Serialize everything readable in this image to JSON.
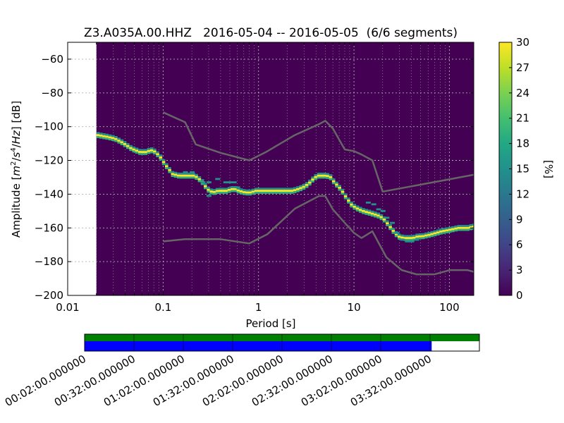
{
  "chart_data": [
    {
      "type": "heatmap",
      "title": "Z3.A035A.00.HHZ   2016-05-04 -- 2016-05-05  (6/6 segments)",
      "xlabel": "Period [s]",
      "ylabel": "Amplitude [m²/s⁴/Hz] [dB]",
      "x_scale": "log",
      "xlim": [
        0.01,
        180
      ],
      "ylim": [
        -200,
        -50
      ],
      "x_ticks": [
        0.01,
        0.1,
        1,
        10,
        100
      ],
      "x_tick_labels": [
        "0.01",
        "0.1",
        "1",
        "10",
        "100"
      ],
      "y_ticks": [
        -200,
        -180,
        -160,
        -140,
        -120,
        -100,
        -80,
        -60
      ],
      "y_tick_labels": [
        "−200",
        "−180",
        "−160",
        "−140",
        "−120",
        "−100",
        "−80",
        "−60"
      ],
      "data_period_min": 0.02,
      "grid": true,
      "colormap": "viridis",
      "background_color": "#440154",
      "colorbar": {
        "label": "[%]",
        "range": [
          0,
          30
        ],
        "ticks": [
          0,
          3,
          6,
          9,
          12,
          15,
          18,
          21,
          24,
          27,
          30
        ],
        "tick_labels": [
          "0",
          "3",
          "6",
          "9",
          "12",
          "15",
          "18",
          "21",
          "24",
          "27",
          "30"
        ]
      },
      "ppsd_mode_curve": {
        "period": [
          0.02,
          0.025,
          0.03,
          0.035,
          0.04,
          0.045,
          0.05,
          0.055,
          0.06,
          0.065,
          0.07,
          0.075,
          0.08,
          0.09,
          0.1,
          0.11,
          0.12,
          0.14,
          0.16,
          0.18,
          0.2,
          0.22,
          0.25,
          0.28,
          0.32,
          0.36,
          0.4,
          0.45,
          0.5,
          0.55,
          0.6,
          0.7,
          0.8,
          0.9,
          1.0,
          1.2,
          1.4,
          1.6,
          1.8,
          2.0,
          2.2,
          2.5,
          2.8,
          3.2,
          3.6,
          4.0,
          4.5,
          5.0,
          5.5,
          6.0,
          7.0,
          8.0,
          9.0,
          10.0,
          11.0,
          12.0,
          14.0,
          16.0,
          18.0,
          20.0,
          22.0,
          25.0,
          28.0,
          32.0,
          36.0,
          40.0,
          45.0,
          50.0,
          60.0,
          70.0,
          80.0,
          100.0,
          120.0,
          150.0,
          180.0
        ],
        "amplitude": [
          -105,
          -106,
          -107,
          -109,
          -111,
          -113,
          -114,
          -115,
          -115,
          -115,
          -114,
          -114,
          -115,
          -118,
          -122,
          -125,
          -128,
          -129,
          -129,
          -129,
          -129,
          -130,
          -133,
          -137,
          -139,
          -138,
          -138,
          -138,
          -137,
          -137,
          -138,
          -139,
          -139,
          -138,
          -138,
          -138,
          -138,
          -138,
          -138,
          -138,
          -138,
          -137,
          -136,
          -134,
          -131,
          -129,
          -129,
          -129,
          -130,
          -133,
          -137,
          -142,
          -146,
          -148,
          -149,
          -150,
          -151,
          -152,
          -153,
          -155,
          -158,
          -162,
          -165,
          -166,
          -166,
          -166,
          -165,
          -165,
          -164,
          -163,
          -162,
          -161,
          -160,
          -160,
          -159
        ]
      },
      "ppsd_secondary_bins": [
        {
          "period": 0.17,
          "amplitude": -127
        },
        {
          "period": 0.2,
          "amplitude": -127
        },
        {
          "period": 0.26,
          "amplitude": -133
        },
        {
          "period": 0.3,
          "amplitude": -133
        },
        {
          "period": 0.37,
          "amplitude": -131
        },
        {
          "period": 0.45,
          "amplitude": -133
        },
        {
          "period": 0.5,
          "amplitude": -133
        },
        {
          "period": 0.55,
          "amplitude": -133
        },
        {
          "period": 0.3,
          "amplitude": -141
        },
        {
          "period": 0.6,
          "amplitude": -136
        },
        {
          "period": 14.0,
          "amplitude": -145
        },
        {
          "period": 16.0,
          "amplitude": -146
        },
        {
          "period": 18.0,
          "amplitude": -149
        },
        {
          "period": 20.0,
          "amplitude": -150
        },
        {
          "period": 22.0,
          "amplitude": -154
        },
        {
          "period": 25.0,
          "amplitude": -157
        },
        {
          "period": 28.0,
          "amplitude": -163
        },
        {
          "period": 32.0,
          "amplitude": -167
        },
        {
          "period": 36.0,
          "amplitude": -168
        },
        {
          "period": 40.0,
          "amplitude": -168
        },
        {
          "period": 45.0,
          "amplitude": -167
        }
      ],
      "noise_models": [
        {
          "name": "NHNM",
          "color": "#666666",
          "period": [
            0.1,
            0.17,
            0.22,
            0.4,
            0.8,
            1.2,
            2.4,
            4.3,
            5.0,
            6.0,
            8.0,
            10.0,
            12.0,
            15.6,
            20.0,
            180.0
          ],
          "amplitude": [
            -91.5,
            -97.4,
            -110.5,
            -115.5,
            -120.0,
            -115.0,
            -105.0,
            -98.5,
            -96.5,
            -101.0,
            -113.5,
            -114.5,
            -116.5,
            -120.0,
            -138.5,
            -128.5
          ]
        },
        {
          "name": "NLNM",
          "color": "#666666",
          "period": [
            0.1,
            0.17,
            0.4,
            0.8,
            1.24,
            2.4,
            4.3,
            5.0,
            6.0,
            8.0,
            10.0,
            12.0,
            15.6,
            21.9,
            31.6,
            45.0,
            70.0,
            101.0,
            154.0,
            180.0
          ],
          "amplitude": [
            -168.0,
            -166.7,
            -166.7,
            -169.2,
            -163.7,
            -148.6,
            -141.1,
            -141.1,
            -149.0,
            -157.0,
            -163.0,
            -166.0,
            -162.0,
            -177.5,
            -185.0,
            -187.5,
            -187.5,
            -185.0,
            -185.0,
            -186.0
          ]
        }
      ]
    },
    {
      "type": "bar",
      "title": "",
      "xlabel": "",
      "ylabel": "",
      "x_tick_labels": [
        "00:02:00.000000",
        "00:32:00.000000",
        "01:02:00.000000",
        "01:32:00.000000",
        "02:02:00.000000",
        "02:32:00.000000",
        "03:02:00.000000",
        "03:32:00.000000"
      ],
      "x_ticks_minutes": [
        2,
        32,
        62,
        92,
        122,
        152,
        182,
        212
      ],
      "xlim_minutes": [
        2,
        242
      ],
      "series": [
        {
          "color": "#008000",
          "start_minutes": 2,
          "end_minutes": 242
        },
        {
          "color": "#0000ff",
          "start_minutes": 2,
          "end_minutes": 213
        }
      ],
      "colors": {
        "upper": "#008000",
        "lower": "#0000ff"
      }
    }
  ]
}
